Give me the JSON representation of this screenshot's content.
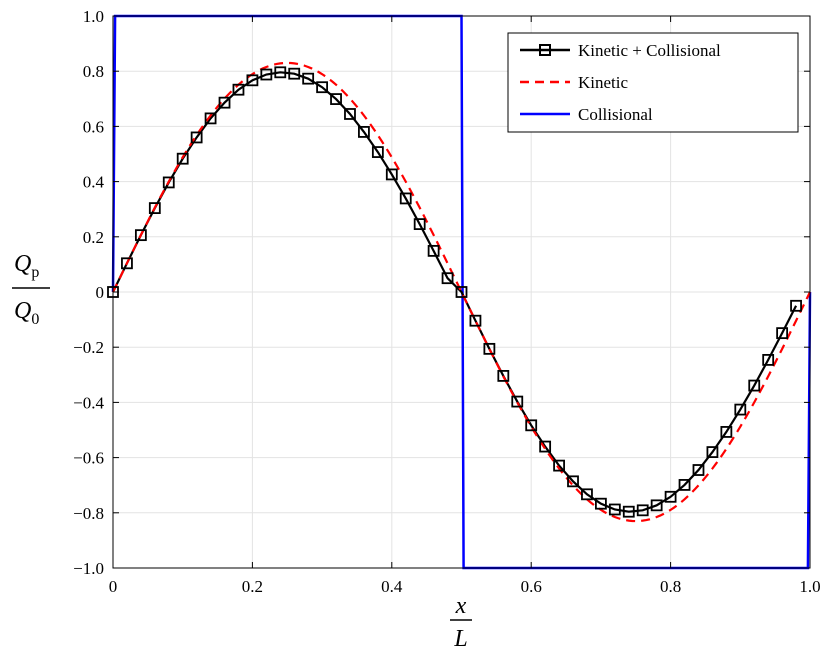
{
  "chart_data": {
    "type": "line",
    "title": "",
    "xlabel": {
      "numerator": "x",
      "denominator": "L"
    },
    "ylabel": {
      "numerator": "Q",
      "numerator_sub": "p",
      "denominator": "Q",
      "denominator_sub": "0"
    },
    "xlim": [
      0,
      1
    ],
    "ylim": [
      -1,
      1
    ],
    "xticks": [
      0,
      0.2,
      0.4,
      0.6,
      0.8,
      1
    ],
    "xtick_labels": [
      "0",
      "0.2",
      "0.4",
      "0.6",
      "0.8",
      "1.0"
    ],
    "yticks": [
      -1,
      -0.8,
      -0.6,
      -0.4,
      -0.2,
      0,
      0.2,
      0.4,
      0.6,
      0.8,
      1
    ],
    "ytick_labels": [
      "−1.0",
      "−0.8",
      "−0.6",
      "−0.4",
      "−0.2",
      "0",
      "0.2",
      "0.4",
      "0.6",
      "0.8",
      "1.0"
    ],
    "grid": true,
    "legend_position": "top-right",
    "series": [
      {
        "name": "Kinetic + Collisional",
        "color": "#000000",
        "style": "solid",
        "marker": "square",
        "x": [
          0,
          0.02,
          0.04,
          0.06,
          0.08,
          0.1,
          0.12,
          0.14,
          0.16,
          0.18,
          0.2,
          0.22,
          0.24,
          0.26,
          0.28,
          0.3,
          0.32,
          0.34,
          0.36,
          0.38,
          0.4,
          0.42,
          0.44,
          0.46,
          0.48,
          0.5,
          0.52,
          0.54,
          0.56,
          0.58,
          0.6,
          0.62,
          0.64,
          0.66,
          0.68,
          0.7,
          0.72,
          0.74,
          0.76,
          0.78,
          0.8,
          0.82,
          0.84,
          0.86,
          0.88,
          0.9,
          0.92,
          0.94,
          0.96,
          0.98
        ],
        "y": [
          0,
          0.104,
          0.206,
          0.304,
          0.397,
          0.483,
          0.56,
          0.629,
          0.686,
          0.733,
          0.767,
          0.788,
          0.796,
          0.791,
          0.773,
          0.742,
          0.699,
          0.645,
          0.58,
          0.507,
          0.426,
          0.339,
          0.246,
          0.149,
          0.05,
          0,
          -0.104,
          -0.206,
          -0.304,
          -0.397,
          -0.483,
          -0.56,
          -0.629,
          -0.686,
          -0.733,
          -0.767,
          -0.788,
          -0.796,
          -0.791,
          -0.773,
          -0.742,
          -0.699,
          -0.645,
          -0.58,
          -0.507,
          -0.426,
          -0.339,
          -0.246,
          -0.149,
          -0.05
        ]
      },
      {
        "name": "Kinetic",
        "color": "#ff0000",
        "style": "dashed",
        "amplitude": 0.83,
        "function": "sin(2*pi*x)",
        "samples": 200
      },
      {
        "name": "Collisional",
        "color": "#0000ff",
        "style": "solid",
        "x": [
          0,
          0.003,
          0.5,
          0.503,
          0.997,
          1
        ],
        "y": [
          0,
          1,
          1,
          -1,
          -1,
          0
        ]
      }
    ]
  }
}
